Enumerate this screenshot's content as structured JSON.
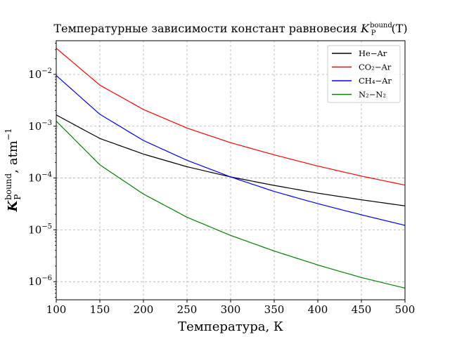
{
  "chart_data": {
    "type": "line",
    "title_prefix": "Температурные зависимости констант равновесия ",
    "title_symbol": "K",
    "title_sub": "P",
    "title_sup": "bound",
    "title_suffix": "(T)",
    "xlabel": "Температура, К",
    "ylabel_symbol": "K",
    "ylabel_sub": "P",
    "ylabel_sup": "bound",
    "ylabel_unit": ", atm",
    "ylabel_unit_sup": "−1",
    "xlim": [
      100,
      500
    ],
    "ylim_log10": [
      -6.35,
      -1.35
    ],
    "yscale": "log",
    "grid": true,
    "legend_position": "top-right",
    "xticks": [
      "100",
      "150",
      "200",
      "250",
      "300",
      "350",
      "400",
      "450",
      "500"
    ],
    "xtick_values": [
      100,
      150,
      200,
      250,
      300,
      350,
      400,
      450,
      500
    ],
    "ytick_exponents": [
      -6,
      -5,
      -4,
      -3,
      -2
    ],
    "ytick_base": "10",
    "ytick_sup": [
      "−6",
      "−5",
      "−4",
      "−3",
      "−2"
    ],
    "x": [
      100,
      150,
      200,
      250,
      300,
      350,
      400,
      450,
      500
    ],
    "series": [
      {
        "name": "He−Ar",
        "color": "#000000",
        "values": [
          0.00165,
          0.00058,
          0.00029,
          0.000165,
          0.000105,
          7.2e-05,
          5.1e-05,
          3.8e-05,
          2.9e-05
        ]
      },
      {
        "name": "CO₂−Ar",
        "color": "#ff0000",
        "values": [
          0.032,
          0.0062,
          0.0021,
          0.00092,
          0.00048,
          0.00028,
          0.00017,
          0.000109,
          7.3e-05
        ]
      },
      {
        "name": "CH₄−Ar",
        "color": "#0000ff",
        "values": [
          0.0095,
          0.0017,
          0.00053,
          0.00022,
          0.000105,
          5.5e-05,
          3.2e-05,
          1.95e-05,
          1.22e-05
        ]
      },
      {
        "name": "N₂−N₂",
        "color": "#008000",
        "values": [
          0.00125,
          0.00018,
          4.9e-05,
          1.75e-05,
          7.8e-06,
          3.9e-06,
          2.1e-06,
          1.2e-06,
          7.5e-07
        ]
      }
    ]
  }
}
